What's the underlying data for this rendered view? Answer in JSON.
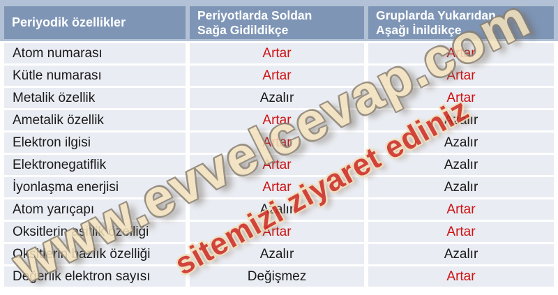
{
  "table": {
    "columns": [
      {
        "label": "Periyodik özellikler",
        "lines": [
          "Periyodik özellikler"
        ]
      },
      {
        "label": "Periyotlarda Soldan Sağa Gidildikçe",
        "lines": [
          "Periyotlarda Soldan",
          "Sağa Gidildikçe"
        ]
      },
      {
        "label": "Gruplarda Yukarıdan Aşağı İnildikçe",
        "lines": [
          "Gruplarda Yukarıdan",
          "Aşağı İnildikçe"
        ]
      }
    ],
    "rows": [
      {
        "property": "Atom numarası",
        "period": "Artar",
        "period_color": "red",
        "group": "Artar",
        "group_color": "red"
      },
      {
        "property": "Kütle numarası",
        "period": "Artar",
        "period_color": "red",
        "group": "Artar",
        "group_color": "red"
      },
      {
        "property": "Metalik özellik",
        "period": "Azalır",
        "period_color": "black",
        "group": "Artar",
        "group_color": "red"
      },
      {
        "property": "Ametalik özellik",
        "period": "Artar",
        "period_color": "red",
        "group": "Azalır",
        "group_color": "black"
      },
      {
        "property": "Elektron ilgisi",
        "period": "Artar",
        "period_color": "red",
        "group": "Azalır",
        "group_color": "black"
      },
      {
        "property": "Elektronegatiflik",
        "period": "Artar",
        "period_color": "red",
        "group": "Azalır",
        "group_color": "black"
      },
      {
        "property": "İyonlaşma enerjisi",
        "period": "Artar",
        "period_color": "red",
        "group": "Azalır",
        "group_color": "black"
      },
      {
        "property": "Atom yarıçapı",
        "period": "Azalır",
        "period_color": "black",
        "group": "Artar",
        "group_color": "red"
      },
      {
        "property": "Oksitlerin asitlik özelliği",
        "period": "Artar",
        "period_color": "red",
        "group": "Artar",
        "group_color": "red"
      },
      {
        "property": "Oksitlerin bazlık özelliği",
        "period": "Azalır",
        "period_color": "black",
        "group": "Azalır",
        "group_color": "black"
      },
      {
        "property": "Değerlik elektron sayısı",
        "period": "Değişmez",
        "period_color": "black",
        "group": "Artar",
        "group_color": "red"
      }
    ]
  },
  "watermark": {
    "line1": "www.evvelcevap.com",
    "line2": "sitemizi ziyaret ediniz"
  },
  "colors": {
    "header_bg": "#7e95b6",
    "header_border": "#b2c1d5",
    "header_text": "#ffffff",
    "row_bg": "#e9ecf2",
    "text_black": "#1a1a1a",
    "value_red": "#cc1111",
    "wm1_fill": "#f4e2bc",
    "wm1_outline": "#8a7f6f",
    "wm2_fill": "#cd2c24",
    "wm2_outline": "#f2ddb5"
  }
}
